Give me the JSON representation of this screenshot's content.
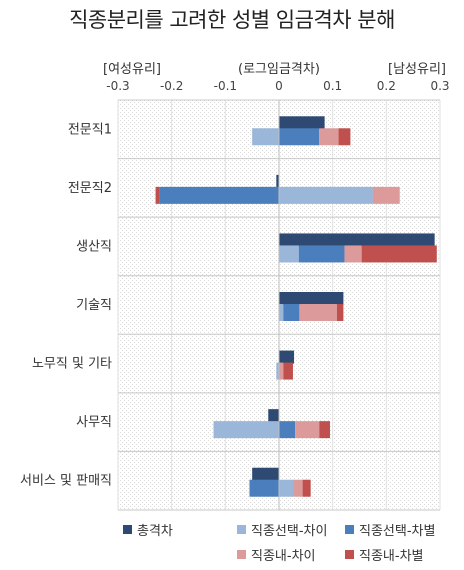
{
  "chart_data": {
    "type": "bar",
    "stacked_decomposition": true,
    "title": "직종분리를 고려한 성별 임금격차 분해",
    "axis_left_label": "[여성유리]",
    "axis_center_label": "(로그임금격차)",
    "axis_right_label": "[남성유리]",
    "xlim": [
      -0.3,
      0.3
    ],
    "ticks": [
      "-0.3",
      "-0.2",
      "-0.1",
      "0",
      "0.1",
      "0.2",
      "0.3"
    ],
    "tick_values": [
      -0.3,
      -0.2,
      -0.1,
      0,
      0.1,
      0.2,
      0.3
    ],
    "categories": [
      "전문직1",
      "전문직2",
      "생산직",
      "기술직",
      "노무직 및 기타",
      "사무직",
      "서비스 및 판매직"
    ],
    "series": [
      {
        "name": "총격차",
        "color": "#2e4a73",
        "values": [
          0.085,
          -0.005,
          0.29,
          0.12,
          0.028,
          -0.02,
          -0.05
        ]
      },
      {
        "name": "직종선택-차이",
        "color": "#9ab6d9",
        "values": [
          -0.05,
          0.175,
          0.037,
          0.008,
          -0.005,
          -0.122,
          0.027
        ]
      },
      {
        "name": "직종선택-차별",
        "color": "#4a7ebd",
        "values": [
          0.075,
          -0.222,
          0.085,
          0.03,
          0.0,
          0.03,
          -0.055
        ]
      },
      {
        "name": "직종내-차이",
        "color": "#dc9a9a",
        "values": [
          0.036,
          0.05,
          0.032,
          0.07,
          0.008,
          0.045,
          0.017
        ]
      },
      {
        "name": "직종내-차별",
        "color": "#c0504d",
        "values": [
          0.022,
          -0.008,
          0.14,
          0.012,
          0.018,
          0.02,
          0.015
        ]
      }
    ],
    "grid": true,
    "legend_position": "bottom"
  },
  "legend": [
    {
      "label": "총격차",
      "color": "#2e4a73"
    },
    {
      "label": "직종선택-차이",
      "color": "#9ab6d9"
    },
    {
      "label": "직종선택-차별",
      "color": "#4a7ebd"
    },
    {
      "label": "직종내-차이",
      "color": "#dc9a9a"
    },
    {
      "label": "직종내-차별",
      "color": "#c0504d"
    }
  ]
}
